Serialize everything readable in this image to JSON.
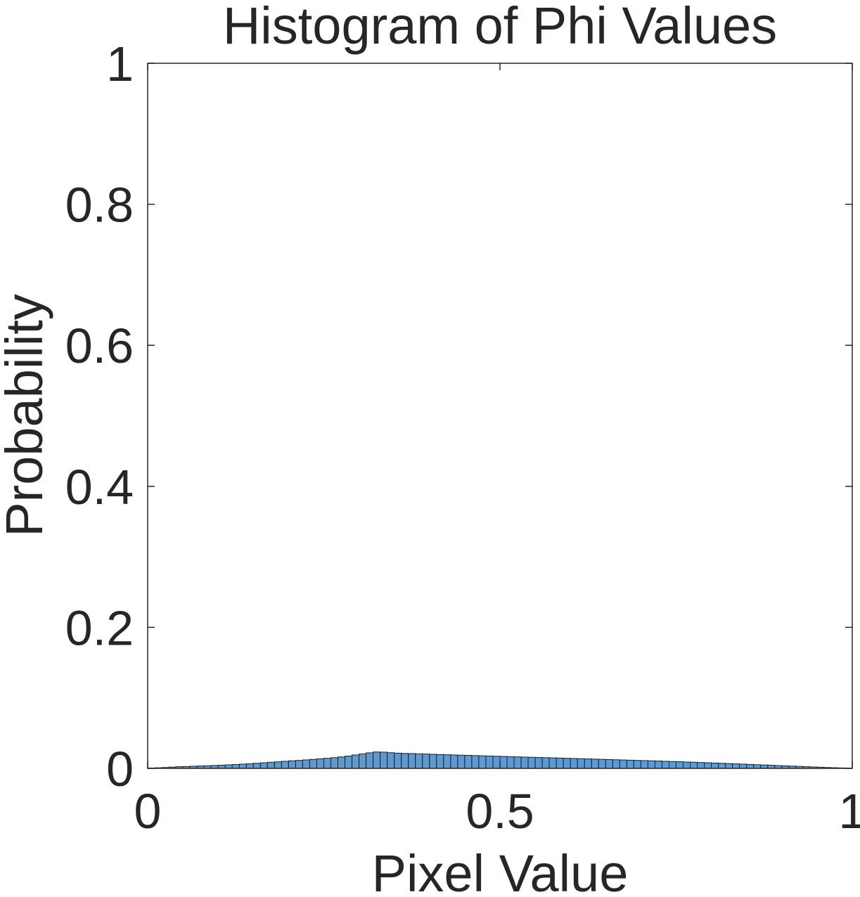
{
  "chart_data": {
    "type": "bar",
    "title": "Histogram of Phi Values",
    "xlabel": "Pixel Value",
    "ylabel": "Probability",
    "xlim": [
      0,
      1
    ],
    "ylim": [
      0,
      1
    ],
    "x_ticks": [
      0,
      0.5,
      1
    ],
    "x_tick_labels": [
      "0",
      "0.5",
      "1"
    ],
    "y_ticks": [
      0,
      0.2,
      0.4,
      0.6,
      0.8,
      1
    ],
    "y_tick_labels": [
      "0",
      "0.2",
      "0.4",
      "0.6",
      "0.8",
      "1"
    ],
    "grid": false,
    "bin_width": 0.01,
    "bin_starts": [
      0.0,
      0.01,
      0.02,
      0.03,
      0.04,
      0.05,
      0.06,
      0.07,
      0.08,
      0.09,
      0.1,
      0.11,
      0.12,
      0.13,
      0.14,
      0.15,
      0.16,
      0.17,
      0.18,
      0.19,
      0.2,
      0.21,
      0.22,
      0.23,
      0.24,
      0.25,
      0.26,
      0.27,
      0.28,
      0.29,
      0.3,
      0.31,
      0.32,
      0.33,
      0.34,
      0.35,
      0.36,
      0.37,
      0.38,
      0.39,
      0.4,
      0.41,
      0.42,
      0.43,
      0.44,
      0.45,
      0.46,
      0.47,
      0.48,
      0.49,
      0.5,
      0.51,
      0.52,
      0.53,
      0.54,
      0.55,
      0.56,
      0.57,
      0.58,
      0.59,
      0.6,
      0.61,
      0.62,
      0.63,
      0.64,
      0.65,
      0.66,
      0.67,
      0.68,
      0.69,
      0.7,
      0.71,
      0.72,
      0.73,
      0.74,
      0.75,
      0.76,
      0.77,
      0.78,
      0.79,
      0.8,
      0.81,
      0.82,
      0.83,
      0.84,
      0.85,
      0.86,
      0.87,
      0.88,
      0.89,
      0.9,
      0.91,
      0.92,
      0.93,
      0.94,
      0.95,
      0.96,
      0.97,
      0.98,
      0.99
    ],
    "values": [
      0.0005,
      0.0008,
      0.0012,
      0.0018,
      0.0024,
      0.0026,
      0.003,
      0.0034,
      0.0037,
      0.0041,
      0.0045,
      0.005,
      0.0055,
      0.006,
      0.0066,
      0.0072,
      0.0079,
      0.0086,
      0.0093,
      0.01,
      0.0107,
      0.0113,
      0.012,
      0.0127,
      0.0135,
      0.0143,
      0.0152,
      0.0162,
      0.0175,
      0.019,
      0.0205,
      0.022,
      0.0232,
      0.023,
      0.0222,
      0.0216,
      0.0212,
      0.021,
      0.0206,
      0.0203,
      0.02,
      0.0196,
      0.0193,
      0.019,
      0.0187,
      0.0184,
      0.0181,
      0.0178,
      0.0175,
      0.0172,
      0.0169,
      0.0166,
      0.0163,
      0.016,
      0.0157,
      0.0154,
      0.0152,
      0.0149,
      0.0146,
      0.0143,
      0.014,
      0.0137,
      0.0134,
      0.0131,
      0.0128,
      0.0125,
      0.0122,
      0.0119,
      0.0116,
      0.0113,
      0.011,
      0.0107,
      0.0104,
      0.01,
      0.0097,
      0.0094,
      0.009,
      0.0087,
      0.0083,
      0.008,
      0.0076,
      0.0072,
      0.0068,
      0.0064,
      0.006,
      0.0056,
      0.0052,
      0.0048,
      0.0044,
      0.004,
      0.0036,
      0.0032,
      0.0028,
      0.0024,
      0.002,
      0.0016,
      0.0012,
      0.0009,
      0.0006,
      0.0003
    ],
    "bar_color": "#5b9bd5",
    "edge_color": "#1f1f1f"
  }
}
